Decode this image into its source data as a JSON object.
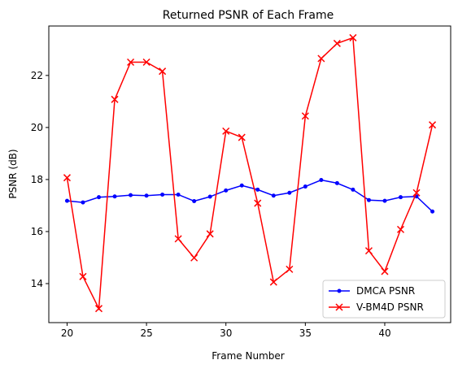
{
  "chart_data": {
    "type": "line",
    "title": "Returned PSNR of Each Frame",
    "xlabel": "Frame Number",
    "ylabel": "PSNR (dB)",
    "xlim": [
      18.85,
      44.15
    ],
    "ylim": [
      12.5,
      23.9
    ],
    "xticks": [
      20,
      25,
      30,
      35,
      40
    ],
    "yticks": [
      14,
      16,
      18,
      20,
      22
    ],
    "grid": false,
    "legend_position": "lower right",
    "x": [
      20,
      21,
      22,
      23,
      24,
      25,
      26,
      27,
      28,
      29,
      30,
      31,
      32,
      33,
      34,
      35,
      36,
      37,
      38,
      39,
      40,
      41,
      42,
      43
    ],
    "series": [
      {
        "name": "DMCA PSNR",
        "color": "#0000ff",
        "marker": "dot",
        "values": [
          17.18,
          17.12,
          17.32,
          17.35,
          17.4,
          17.38,
          17.42,
          17.42,
          17.17,
          17.34,
          17.58,
          17.77,
          17.61,
          17.38,
          17.49,
          17.73,
          17.98,
          17.86,
          17.61,
          17.21,
          17.18,
          17.32,
          17.35,
          16.77
        ]
      },
      {
        "name": "V-BM4D PSNR",
        "color": "#ff0000",
        "marker": "x",
        "values": [
          18.07,
          14.27,
          13.04,
          21.08,
          22.51,
          22.51,
          22.16,
          15.72,
          14.99,
          15.91,
          19.86,
          19.62,
          17.09,
          14.06,
          14.55,
          20.44,
          22.65,
          23.23,
          23.45,
          15.26,
          14.47,
          16.08,
          17.49,
          20.1
        ]
      }
    ]
  }
}
